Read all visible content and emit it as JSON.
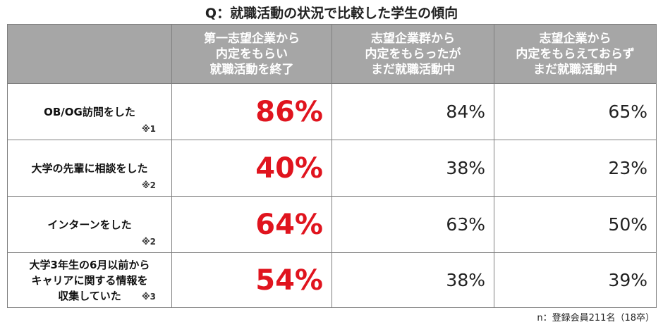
{
  "title": "Q：就職活動の状況で比較した学生の傾向",
  "table": {
    "headers": [
      [
        "第一志望企業から",
        "内定をもらい",
        "就職活動を終了"
      ],
      [
        "志望企業群から",
        "内定をもらったが",
        "まだ就職活動中"
      ],
      [
        "志望企業から",
        "内定をもらえておらず",
        "まだ就職活動中"
      ]
    ],
    "rows": [
      {
        "label": [
          "OB/OG訪問をした"
        ],
        "note": "※1",
        "values": [
          "86%",
          "84%",
          "65%"
        ]
      },
      {
        "label": [
          "大学の先輩に相談をした"
        ],
        "note": "※2",
        "values": [
          "40%",
          "38%",
          "23%"
        ]
      },
      {
        "label": [
          "インターンをした"
        ],
        "note": "※2",
        "values": [
          "64%",
          "63%",
          "50%"
        ]
      },
      {
        "label": [
          "大学3年生の6月以前から",
          "キャリアに関する情報を",
          "収集していた"
        ],
        "note": "※3",
        "values": [
          "54%",
          "38%",
          "39%"
        ]
      }
    ]
  },
  "footnote": "n：登録会員211名（18卒）"
}
